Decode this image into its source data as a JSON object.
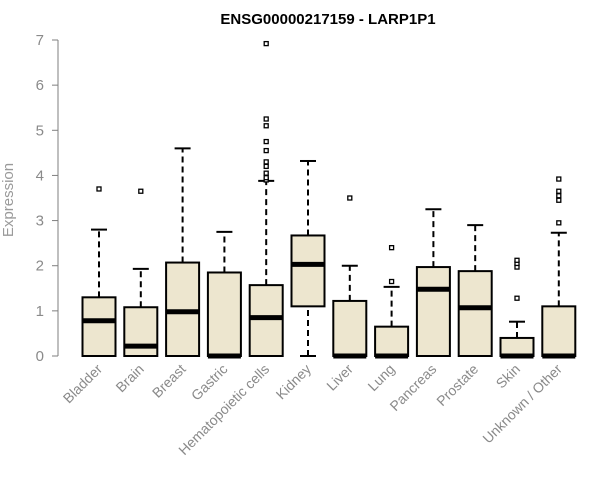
{
  "chart_data": {
    "type": "box",
    "title": "ENSG00000217159 - LARP1P1",
    "xlabel": "",
    "ylabel": "Expression",
    "ylim": [
      0,
      7
    ],
    "yticks": [
      0,
      1,
      2,
      3,
      4,
      5,
      6,
      7
    ],
    "grid": false,
    "colors": {
      "box_fill": "#ede6cf",
      "box_stroke": "#000000",
      "axis": "#7f7f7f"
    },
    "categories": [
      "Bladder",
      "Brain",
      "Breast",
      "Gastric",
      "Hematopoietic cells",
      "Kidney",
      "Liver",
      "Lung",
      "Pancreas",
      "Prostate",
      "Skin",
      "Unknown / Other"
    ],
    "boxes": [
      {
        "name": "Bladder",
        "whisker_low": 0,
        "q1": 0,
        "median": 0.78,
        "q3": 1.3,
        "whisker_high": 2.8,
        "outliers": [
          3.7
        ]
      },
      {
        "name": "Brain",
        "whisker_low": 0,
        "q1": 0,
        "median": 0.22,
        "q3": 1.08,
        "whisker_high": 1.93,
        "outliers": [
          3.65
        ]
      },
      {
        "name": "Breast",
        "whisker_low": 0,
        "q1": 0,
        "median": 0.98,
        "q3": 2.07,
        "whisker_high": 4.6,
        "outliers": []
      },
      {
        "name": "Gastric",
        "whisker_low": 0,
        "q1": 0,
        "median": 0,
        "q3": 1.85,
        "whisker_high": 2.75,
        "outliers": []
      },
      {
        "name": "Hematopoietic cells",
        "whisker_low": 0,
        "q1": 0,
        "median": 0.85,
        "q3": 1.57,
        "whisker_high": 3.88,
        "outliers": [
          3.9,
          3.95,
          4.05,
          4.2,
          4.3,
          4.55,
          4.75,
          5.1,
          5.25,
          6.92
        ]
      },
      {
        "name": "Kidney",
        "whisker_low": 0,
        "q1": 1.1,
        "median": 2.03,
        "q3": 2.67,
        "whisker_high": 4.32,
        "outliers": []
      },
      {
        "name": "Liver",
        "whisker_low": 0,
        "q1": 0,
        "median": 0,
        "q3": 1.22,
        "whisker_high": 2.0,
        "outliers": [
          3.5
        ]
      },
      {
        "name": "Lung",
        "whisker_low": 0,
        "q1": 0,
        "median": 0,
        "q3": 0.65,
        "whisker_high": 1.53,
        "outliers": [
          1.65,
          2.4
        ]
      },
      {
        "name": "Pancreas",
        "whisker_low": 0,
        "q1": 0,
        "median": 1.48,
        "q3": 1.97,
        "whisker_high": 3.25,
        "outliers": []
      },
      {
        "name": "Prostate",
        "whisker_low": 0,
        "q1": 0,
        "median": 1.07,
        "q3": 1.88,
        "whisker_high": 2.9,
        "outliers": []
      },
      {
        "name": "Skin",
        "whisker_low": 0,
        "q1": 0,
        "median": 0,
        "q3": 0.4,
        "whisker_high": 0.76,
        "outliers": [
          1.28,
          1.97,
          2.05,
          2.12
        ]
      },
      {
        "name": "Unknown / Other",
        "whisker_low": 0,
        "q1": 0,
        "median": 0,
        "q3": 1.1,
        "whisker_high": 2.73,
        "outliers": [
          2.95,
          3.45,
          3.55,
          3.65,
          3.92
        ]
      }
    ]
  }
}
